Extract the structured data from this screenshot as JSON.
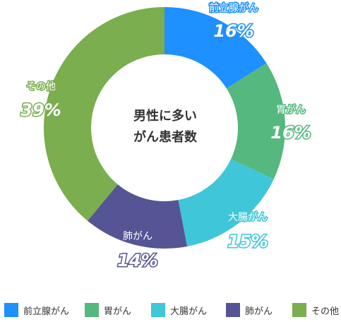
{
  "chart_data": {
    "type": "pie",
    "title": "男性に多い\nがん患者数",
    "title_lines": [
      "男性に多い",
      "がん患者数"
    ],
    "donut": true,
    "percent_suffix": "%",
    "slices": [
      {
        "label": "前立腺がん",
        "value": 16,
        "color": "#1e90ff"
      },
      {
        "label": "胃がん",
        "value": 16,
        "color": "#55b87f"
      },
      {
        "label": "大腸がん",
        "value": 15,
        "color": "#3fc6d8"
      },
      {
        "label": "肺がん",
        "value": 14,
        "color": "#555595"
      },
      {
        "label": "その他",
        "value": 39,
        "color": "#7aae4e"
      }
    ],
    "legend_position": "bottom"
  }
}
